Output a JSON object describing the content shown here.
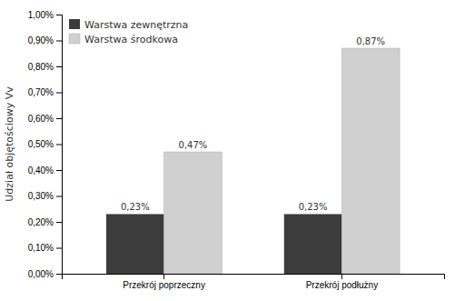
{
  "chart_data": {
    "type": "bar",
    "categories": [
      "Przekrój poprzeczny",
      "Przekrój podłużny"
    ],
    "series": [
      {
        "name": "Warstwa zewnętrzna",
        "color": "#3c3c3c",
        "values": [
          0.23,
          0.23
        ],
        "value_labels": [
          "0,23%",
          "0,23%"
        ]
      },
      {
        "name": "Warstwa środkowa",
        "color": "#d0d0d0",
        "values": [
          0.47,
          0.87
        ],
        "value_labels": [
          "0,47%",
          "0,87%"
        ]
      }
    ],
    "ylabel": "Udział objętościowy Vv",
    "ylim": [
      0,
      1.0
    ],
    "yticks": [
      {
        "value": 0.0,
        "label": "0,00%"
      },
      {
        "value": 0.1,
        "label": "0,10%"
      },
      {
        "value": 0.2,
        "label": "0,20%"
      },
      {
        "value": 0.3,
        "label": "0,30%"
      },
      {
        "value": 0.4,
        "label": "0,40%"
      },
      {
        "value": 0.5,
        "label": "0,50%"
      },
      {
        "value": 0.6,
        "label": "0,60%"
      },
      {
        "value": 0.7,
        "label": "0,70%"
      },
      {
        "value": 0.8,
        "label": "0,80%"
      },
      {
        "value": 0.9,
        "label": "0,90%"
      },
      {
        "value": 1.0,
        "label": "1,00%"
      }
    ],
    "data_labels": true,
    "legend": "upper left",
    "grid": false
  }
}
